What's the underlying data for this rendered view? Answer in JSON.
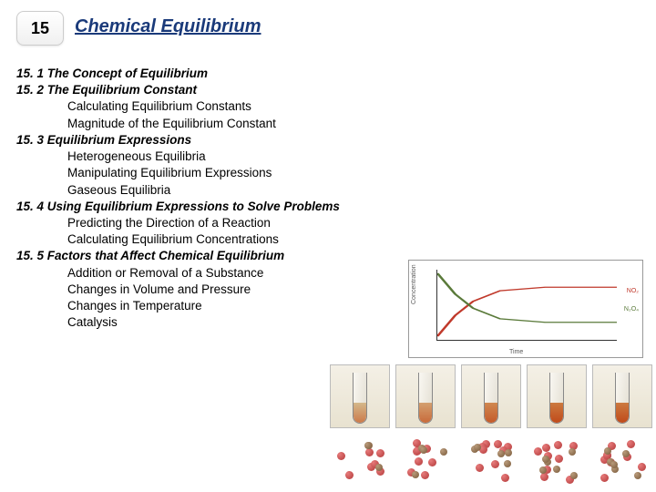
{
  "chapter": {
    "number": "15",
    "title": "Chemical Equilibrium",
    "title_color": "#1a3a7a"
  },
  "toc": {
    "s1": {
      "num": "15. 1",
      "title": "The Concept of Equilibrium"
    },
    "s2": {
      "num": "15. 2",
      "title": "The Equilibrium Constant",
      "subs": [
        "Calculating Equilibrium Constants",
        "Magnitude of the Equilibrium Constant"
      ]
    },
    "s3": {
      "num": "15. 3",
      "title": "Equilibrium Expressions",
      "subs": [
        "Heterogeneous Equilibria",
        "Manipulating Equilibrium Expressions",
        "Gaseous Equilibria"
      ]
    },
    "s4": {
      "num": "15. 4",
      "title": "Using Equilibrium Expressions to Solve Problems",
      "subs": [
        "Predicting the Direction of a Reaction",
        "Calculating Equilibrium Concentrations"
      ]
    },
    "s5": {
      "num": "15. 5",
      "title": "Factors that Affect Chemical Equilibrium",
      "subs": [
        "Addition or Removal of a Substance",
        "Changes in Volume and Pressure",
        "Changes in Temperature",
        "Catalysis"
      ]
    }
  },
  "graph": {
    "type": "line",
    "xlabel": "Time",
    "ylabel": "Concentration",
    "series": [
      {
        "name": "NO₂",
        "color": "#c0392b",
        "points": [
          [
            0,
            0.05
          ],
          [
            0.1,
            0.35
          ],
          [
            0.2,
            0.55
          ],
          [
            0.35,
            0.7
          ],
          [
            0.6,
            0.75
          ],
          [
            1,
            0.75
          ]
        ]
      },
      {
        "name": "N₂O₄",
        "color": "#5a7a3a",
        "points": [
          [
            0,
            0.95
          ],
          [
            0.1,
            0.65
          ],
          [
            0.2,
            0.45
          ],
          [
            0.35,
            0.3
          ],
          [
            0.6,
            0.25
          ],
          [
            1,
            0.25
          ]
        ]
      }
    ],
    "background_color": "#ffffff",
    "border_color": "#999999",
    "axis_color": "#333333",
    "xlim": [
      0,
      1
    ],
    "ylim": [
      0,
      1
    ]
  },
  "tubes": {
    "frame_bg": "#ece6d6",
    "border": "#bbbbbb",
    "fills": [
      {
        "height_pct": 40,
        "gradient": [
          "#d4b88a",
          "#cc7a4a"
        ]
      },
      {
        "height_pct": 40,
        "gradient": [
          "#d4a070",
          "#c86a3a"
        ]
      },
      {
        "height_pct": 40,
        "gradient": [
          "#d08850",
          "#c45a2a"
        ]
      },
      {
        "height_pct": 40,
        "gradient": [
          "#cc7a40",
          "#c04a1a"
        ]
      },
      {
        "height_pct": 40,
        "gradient": [
          "#cc7a40",
          "#c04a1a"
        ]
      }
    ]
  },
  "molecules": {
    "red": "#b33a3a",
    "brown": "#7a5a3a",
    "cells": [
      {
        "reds": 7,
        "browns": 3
      },
      {
        "reds": 8,
        "browns": 4
      },
      {
        "reds": 9,
        "browns": 5
      },
      {
        "reds": 9,
        "browns": 6
      },
      {
        "reds": 9,
        "browns": 6
      }
    ]
  }
}
